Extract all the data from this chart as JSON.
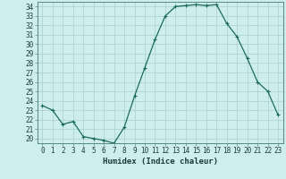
{
  "x": [
    0,
    1,
    2,
    3,
    4,
    5,
    6,
    7,
    8,
    9,
    10,
    11,
    12,
    13,
    14,
    15,
    16,
    17,
    18,
    19,
    20,
    21,
    22,
    23
  ],
  "y": [
    23.5,
    23.0,
    21.5,
    21.8,
    20.2,
    20.0,
    19.8,
    19.5,
    21.2,
    24.5,
    27.5,
    30.5,
    33.0,
    34.0,
    34.1,
    34.2,
    34.1,
    34.2,
    32.2,
    30.8,
    28.5,
    26.0,
    25.0,
    22.5
  ],
  "line_color": "#1a6b5a",
  "marker": "+",
  "marker_size": 3,
  "marker_linewidth": 0.8,
  "bg_color": "#ceeeed",
  "grid_color": "#aacfcf",
  "xlabel": "Humidex (Indice chaleur)",
  "ylim_min": 19.5,
  "ylim_max": 34.5,
  "xlim_min": -0.5,
  "xlim_max": 23.5,
  "yticks": [
    20,
    21,
    22,
    23,
    24,
    25,
    26,
    27,
    28,
    29,
    30,
    31,
    32,
    33,
    34
  ],
  "xticks": [
    0,
    1,
    2,
    3,
    4,
    5,
    6,
    7,
    8,
    9,
    10,
    11,
    12,
    13,
    14,
    15,
    16,
    17,
    18,
    19,
    20,
    21,
    22,
    23
  ],
  "tick_fontsize": 5.5,
  "label_fontsize": 6.5,
  "line_width": 0.9
}
